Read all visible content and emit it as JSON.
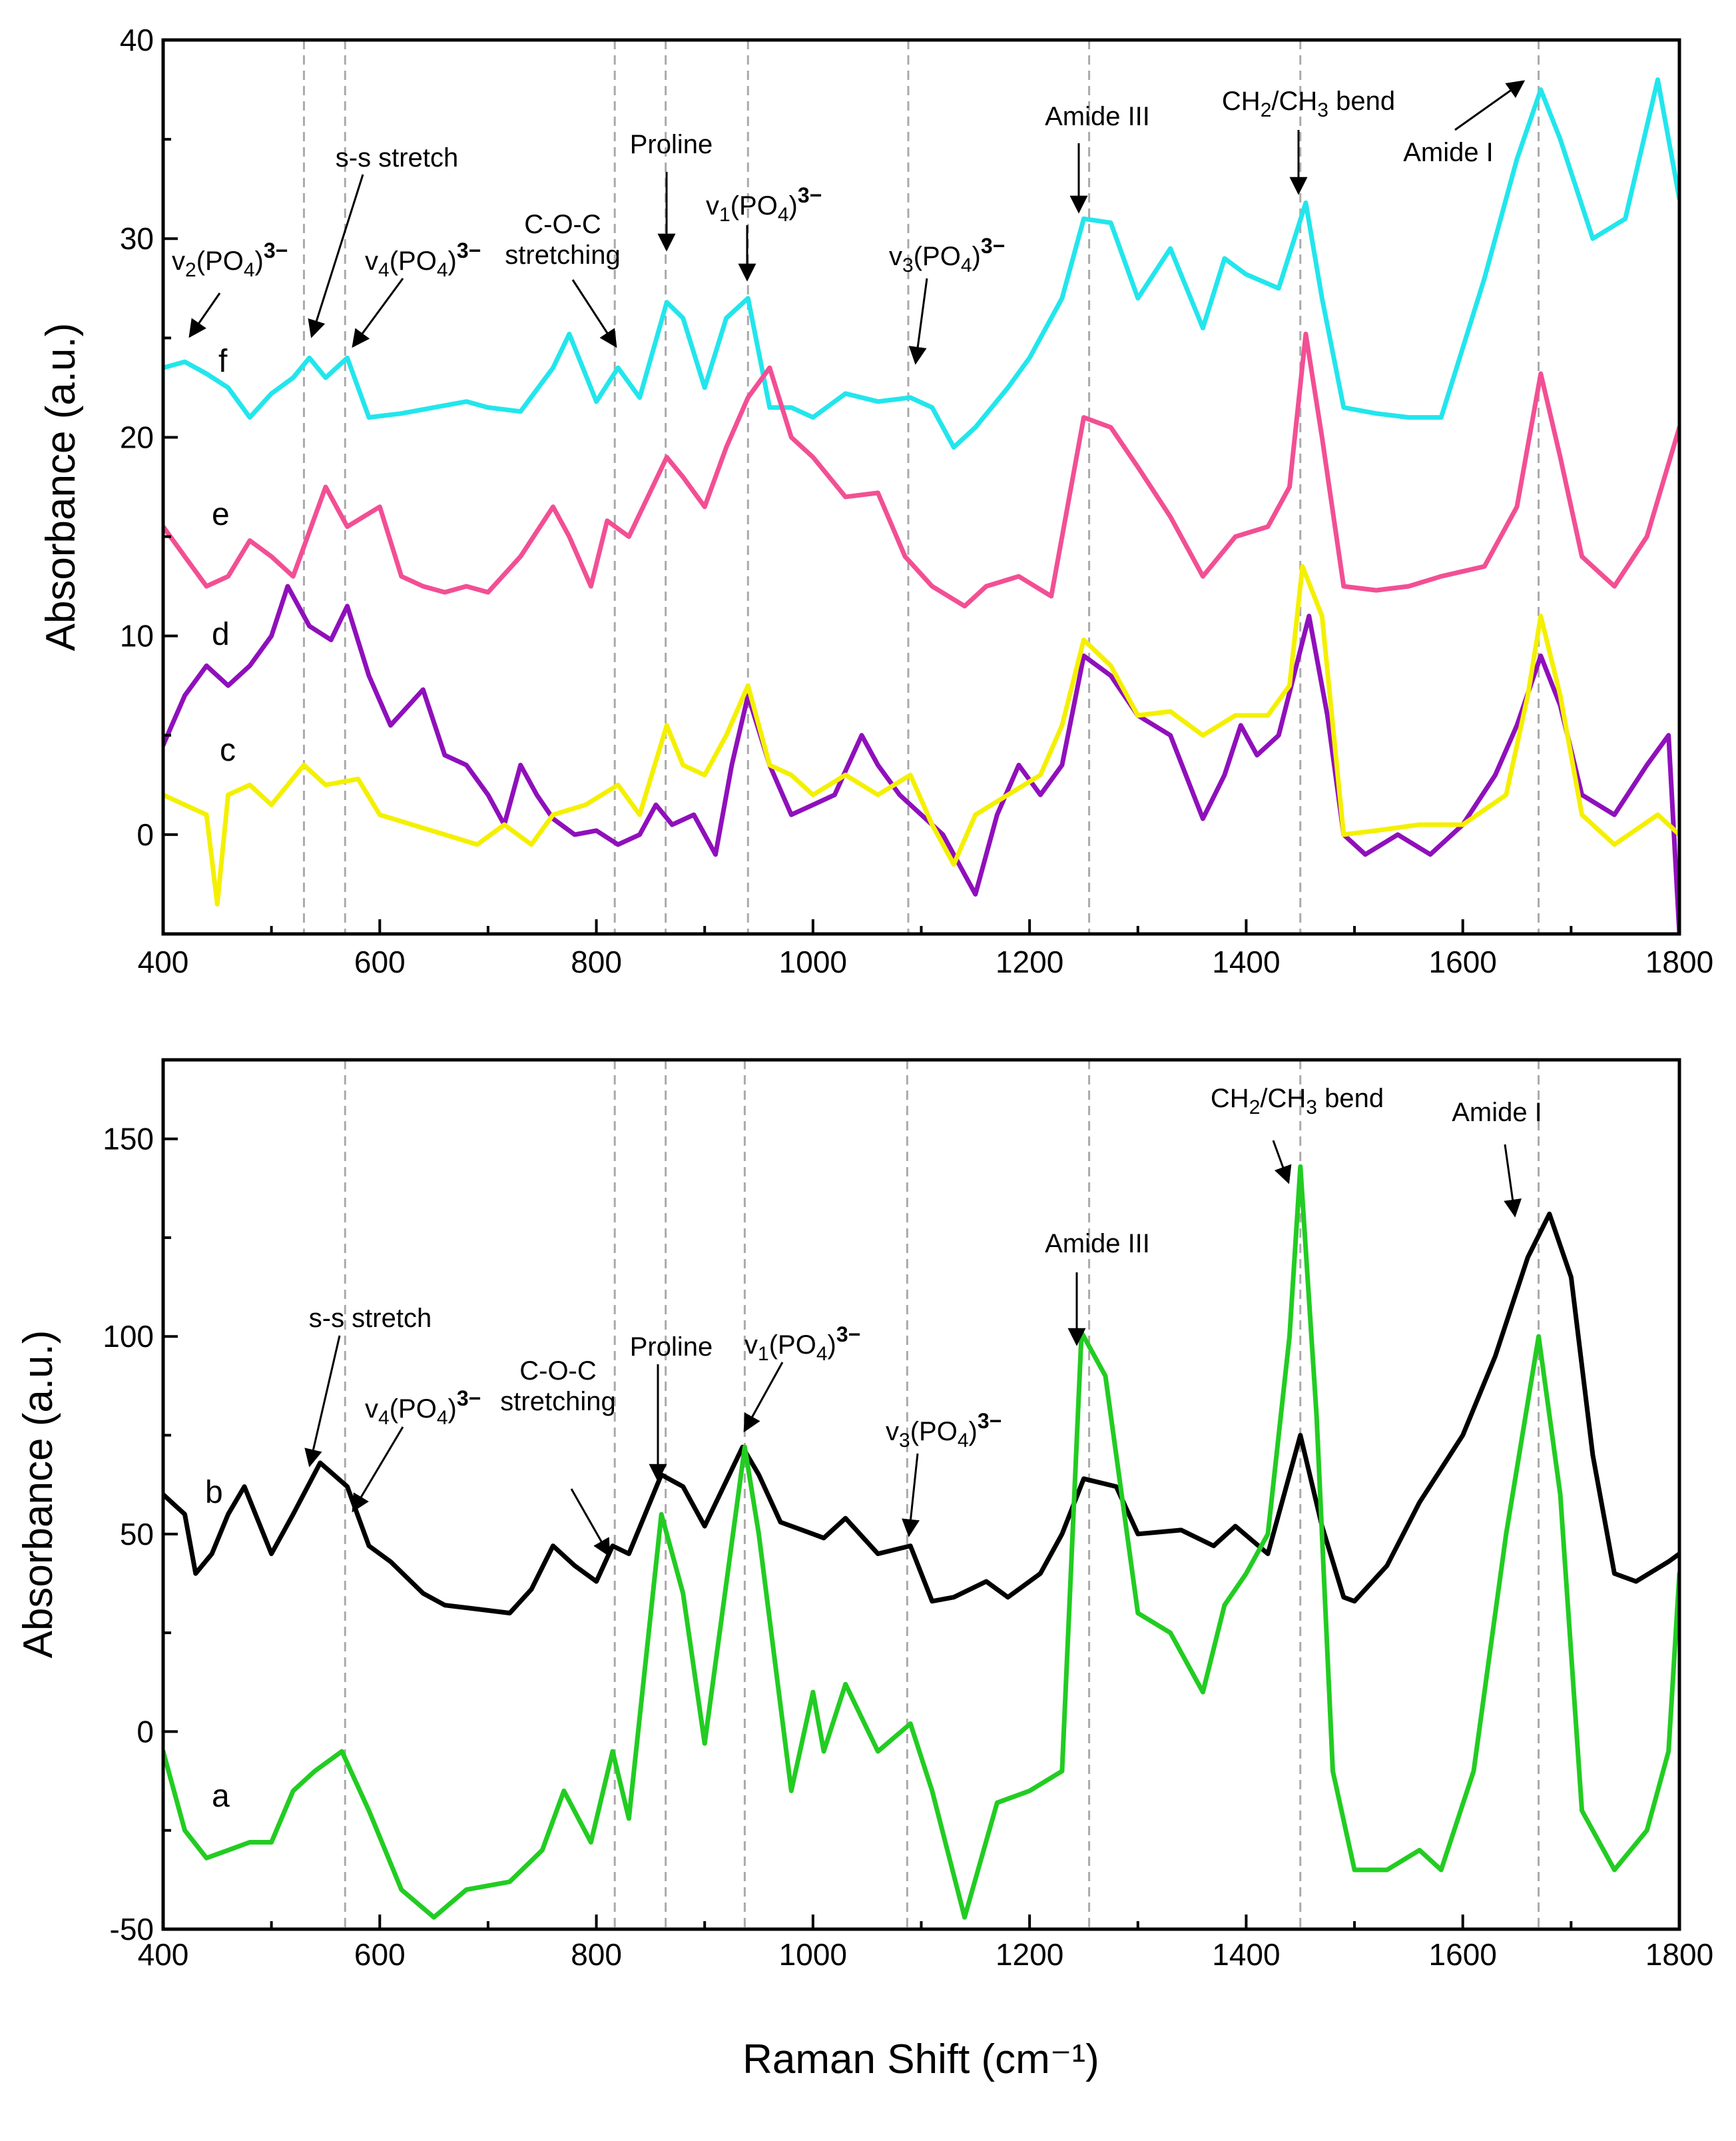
{
  "chart_data": [
    {
      "type": "line",
      "panel": "top",
      "xlabel": "",
      "ylabel": "Absorbance (a.u.)",
      "xlim": [
        400,
        1800
      ],
      "ylim": [
        -5,
        40
      ],
      "xticks": [
        400,
        600,
        800,
        1000,
        1200,
        1400,
        1600,
        1800
      ],
      "yticks": [
        0,
        10,
        20,
        30,
        40
      ],
      "reference_lines_x": [
        530,
        568,
        817,
        864,
        940,
        1088,
        1255,
        1450,
        1670
      ],
      "series": [
        {
          "name": "f",
          "color": "#22e6ec",
          "x": [
            400,
            420,
            440,
            460,
            480,
            500,
            520,
            535,
            550,
            570,
            590,
            620,
            650,
            680,
            700,
            730,
            760,
            775,
            800,
            820,
            840,
            865,
            880,
            900,
            920,
            940,
            960,
            980,
            1000,
            1030,
            1060,
            1090,
            1110,
            1130,
            1150,
            1180,
            1200,
            1230,
            1250,
            1275,
            1300,
            1330,
            1360,
            1380,
            1400,
            1430,
            1455,
            1470,
            1490,
            1520,
            1550,
            1580,
            1620,
            1650,
            1672,
            1690,
            1720,
            1750,
            1780,
            1800
          ],
          "values": [
            23.5,
            23.8,
            23.2,
            22.5,
            21.0,
            22.2,
            23.0,
            24.0,
            23.0,
            24.0,
            21.0,
            21.2,
            21.5,
            21.8,
            21.5,
            21.3,
            23.5,
            25.2,
            21.8,
            23.5,
            22.0,
            26.8,
            26.0,
            22.5,
            26.0,
            27.0,
            21.5,
            21.5,
            21.0,
            22.2,
            21.8,
            22.0,
            21.5,
            19.5,
            20.5,
            22.5,
            24.0,
            27.0,
            31.0,
            30.8,
            27.0,
            29.5,
            25.5,
            29.0,
            28.2,
            27.5,
            31.8,
            27.0,
            21.5,
            21.2,
            21.0,
            21.0,
            28.0,
            34.0,
            37.5,
            35.0,
            30.0,
            31.0,
            38.0,
            32.0
          ]
        },
        {
          "name": "e",
          "color": "#f24f94",
          "x": [
            400,
            420,
            440,
            460,
            480,
            500,
            520,
            550,
            570,
            600,
            620,
            640,
            660,
            680,
            700,
            730,
            760,
            775,
            795,
            810,
            830,
            865,
            880,
            900,
            920,
            940,
            960,
            980,
            1000,
            1030,
            1060,
            1085,
            1110,
            1140,
            1160,
            1190,
            1220,
            1250,
            1275,
            1300,
            1330,
            1360,
            1390,
            1420,
            1440,
            1455,
            1470,
            1490,
            1520,
            1550,
            1580,
            1620,
            1650,
            1672,
            1690,
            1710,
            1740,
            1770,
            1800
          ],
          "values": [
            15.5,
            14.0,
            12.5,
            13.0,
            14.8,
            14.0,
            13.0,
            17.5,
            15.5,
            16.5,
            13.0,
            12.5,
            12.2,
            12.5,
            12.2,
            14.0,
            16.5,
            15.0,
            12.5,
            15.8,
            15.0,
            19.0,
            18.0,
            16.5,
            19.5,
            22.0,
            23.5,
            20.0,
            19.0,
            17.0,
            17.2,
            14.0,
            12.5,
            11.5,
            12.5,
            13.0,
            12.0,
            21.0,
            20.5,
            18.5,
            16.0,
            13.0,
            15.0,
            15.5,
            17.5,
            25.2,
            20.0,
            12.5,
            12.3,
            12.5,
            13.0,
            13.5,
            16.5,
            23.2,
            19.0,
            14.0,
            12.5,
            15.0,
            20.5
          ]
        },
        {
          "name": "d",
          "color": "#8f10bb",
          "x": [
            400,
            420,
            440,
            460,
            480,
            500,
            515,
            535,
            555,
            570,
            590,
            610,
            640,
            660,
            680,
            700,
            715,
            730,
            745,
            760,
            780,
            800,
            820,
            840,
            855,
            870,
            890,
            910,
            925,
            940,
            960,
            980,
            1000,
            1020,
            1045,
            1060,
            1080,
            1100,
            1120,
            1150,
            1170,
            1190,
            1210,
            1230,
            1250,
            1275,
            1300,
            1330,
            1360,
            1380,
            1395,
            1410,
            1430,
            1458,
            1475,
            1490,
            1510,
            1540,
            1570,
            1600,
            1630,
            1650,
            1672,
            1690,
            1710,
            1740,
            1770,
            1790,
            1800
          ],
          "values": [
            4.5,
            7.0,
            8.5,
            7.5,
            8.5,
            10.0,
            12.5,
            10.5,
            9.8,
            11.5,
            8.0,
            5.5,
            7.3,
            4.0,
            3.5,
            2.0,
            0.5,
            3.5,
            2.0,
            0.8,
            0.0,
            0.2,
            -0.5,
            0.0,
            1.5,
            0.5,
            1.0,
            -1.0,
            3.5,
            7.0,
            3.5,
            1.0,
            1.5,
            2.0,
            5.0,
            3.5,
            2.0,
            1.0,
            0.0,
            -3.0,
            1.0,
            3.5,
            2.0,
            3.5,
            9.0,
            8.0,
            6.0,
            5.0,
            0.8,
            3.0,
            5.5,
            4.0,
            5.0,
            11.0,
            6.0,
            0.0,
            -1.0,
            0.0,
            -1.0,
            0.5,
            3.0,
            5.5,
            9.0,
            6.5,
            2.0,
            1.0,
            3.5,
            5.0,
            -5.0
          ]
        },
        {
          "name": "c",
          "color": "#f4f000",
          "x": [
            400,
            420,
            440,
            450,
            460,
            480,
            500,
            530,
            550,
            580,
            600,
            630,
            660,
            690,
            715,
            740,
            760,
            790,
            820,
            840,
            865,
            880,
            900,
            920,
            940,
            960,
            980,
            1000,
            1030,
            1060,
            1090,
            1110,
            1130,
            1150,
            1180,
            1210,
            1230,
            1250,
            1275,
            1300,
            1330,
            1360,
            1390,
            1420,
            1440,
            1452,
            1470,
            1490,
            1520,
            1560,
            1600,
            1640,
            1660,
            1672,
            1690,
            1710,
            1740,
            1780,
            1800
          ],
          "values": [
            2.0,
            1.5,
            1.0,
            -3.5,
            2.0,
            2.5,
            1.5,
            3.5,
            2.5,
            2.8,
            1.0,
            0.5,
            0.0,
            -0.5,
            0.5,
            -0.5,
            1.0,
            1.5,
            2.5,
            1.0,
            5.5,
            3.5,
            3.0,
            5.0,
            7.5,
            3.5,
            3.0,
            2.0,
            3.0,
            2.0,
            3.0,
            0.5,
            -1.5,
            1.0,
            2.0,
            3.0,
            5.5,
            9.8,
            8.5,
            6.0,
            6.2,
            5.0,
            6.0,
            6.0,
            7.5,
            13.5,
            11.0,
            0.0,
            0.2,
            0.5,
            0.5,
            2.0,
            7.0,
            11.0,
            7.0,
            1.0,
            -0.5,
            1.0,
            0.0
          ]
        }
      ],
      "curve_labels": [
        "f",
        "e",
        "d",
        "c"
      ]
    },
    {
      "type": "line",
      "panel": "bottom",
      "xlabel": "Raman Shift (cm⁻¹)",
      "ylabel": "Absorbance (a.u.)",
      "xlim": [
        400,
        1800
      ],
      "ylim": [
        -50,
        170
      ],
      "xticks": [
        400,
        600,
        800,
        1000,
        1200,
        1400,
        1600,
        1800
      ],
      "yticks": [
        -50,
        0,
        50,
        100,
        150
      ],
      "reference_lines_x": [
        568,
        817,
        864,
        937,
        1087,
        1255,
        1450,
        1670
      ],
      "series": [
        {
          "name": "b",
          "color": "#000000",
          "x": [
            400,
            420,
            430,
            445,
            460,
            475,
            500,
            520,
            545,
            570,
            590,
            610,
            640,
            660,
            690,
            720,
            740,
            760,
            780,
            800,
            815,
            830,
            860,
            880,
            900,
            935,
            950,
            970,
            1000,
            1010,
            1030,
            1060,
            1090,
            1110,
            1130,
            1160,
            1180,
            1210,
            1230,
            1250,
            1280,
            1300,
            1340,
            1370,
            1390,
            1420,
            1450,
            1470,
            1490,
            1500,
            1530,
            1560,
            1600,
            1630,
            1660,
            1680,
            1700,
            1720,
            1740,
            1760,
            1790,
            1800
          ],
          "values": [
            60.0,
            55.0,
            40.0,
            45.0,
            55.0,
            62.0,
            45.0,
            55.0,
            68.0,
            62.0,
            47.0,
            43.0,
            35.0,
            32.0,
            31.0,
            30.0,
            36.0,
            47.0,
            42.0,
            38.0,
            47.0,
            45.0,
            65.0,
            62.0,
            52.0,
            72.0,
            65.0,
            53.0,
            50.0,
            49.0,
            54.0,
            45.0,
            47.0,
            33.0,
            34.0,
            38.0,
            34.0,
            40.0,
            50.0,
            64.0,
            62.0,
            50.0,
            51.0,
            47.0,
            52.0,
            45.0,
            75.0,
            52.0,
            34.0,
            33.0,
            42.0,
            58.0,
            75.0,
            95.0,
            120.0,
            131.0,
            115.0,
            70.0,
            40.0,
            38.0,
            43.0,
            45.0
          ]
        },
        {
          "name": "a",
          "color": "#22cc22",
          "x": [
            400,
            420,
            440,
            460,
            480,
            500,
            520,
            540,
            565,
            590,
            620,
            650,
            680,
            720,
            750,
            770,
            795,
            815,
            830,
            860,
            880,
            900,
            937,
            950,
            980,
            1000,
            1010,
            1030,
            1060,
            1090,
            1110,
            1140,
            1170,
            1200,
            1230,
            1248,
            1270,
            1300,
            1330,
            1360,
            1380,
            1400,
            1420,
            1440,
            1450,
            1465,
            1480,
            1500,
            1530,
            1560,
            1580,
            1610,
            1640,
            1670,
            1690,
            1710,
            1740,
            1770,
            1790,
            1800
          ],
          "values": [
            -5.0,
            -25.0,
            -32.0,
            -30.0,
            -28.0,
            -28.0,
            -15.0,
            -10.0,
            -5.0,
            -20.0,
            -40.0,
            -47.0,
            -40.0,
            -38.0,
            -30.0,
            -15.0,
            -28.0,
            -5.0,
            -22.0,
            55.0,
            35.0,
            -3.0,
            72.0,
            50.0,
            -15.0,
            10.0,
            -5.0,
            12.0,
            -5.0,
            2.0,
            -15.0,
            -47.0,
            -18.0,
            -15.0,
            -10.0,
            101.0,
            90.0,
            30.0,
            25.0,
            10.0,
            32.0,
            40.0,
            50.0,
            100.0,
            143.0,
            80.0,
            -10.0,
            -35.0,
            -35.0,
            -30.0,
            -35.0,
            -10.0,
            50.0,
            100.0,
            60.0,
            -20.0,
            -35.0,
            -25.0,
            -5.0,
            40.0
          ]
        }
      ],
      "curve_labels": [
        "b",
        "a"
      ]
    }
  ],
  "annotations": {
    "top": {
      "v2": {
        "prefix": "v",
        "sub1": "2",
        "mid": "(PO",
        "sub2": "4",
        "suf": ")",
        "sup": "3−"
      },
      "ss": "s-s stretch",
      "v4": {
        "prefix": "v",
        "sub1": "4",
        "mid": "(PO",
        "sub2": "4",
        "suf": ")",
        "sup": "3−"
      },
      "coc1": "C-O-C",
      "coc2": "stretching",
      "proline": "Proline",
      "v1": {
        "prefix": "v",
        "sub1": "1",
        "mid": "(PO",
        "sub2": "4",
        "suf": ")",
        "sup": "3−"
      },
      "v3": {
        "prefix": "v",
        "sub1": "3",
        "mid": "(PO",
        "sub2": "4",
        "suf": ")",
        "sup": "3−"
      },
      "amide3": "Amide III",
      "ch": {
        "a": "CH",
        "s1": "2",
        "b": "/CH",
        "s2": "3",
        "c": " bend"
      },
      "amide1": "Amide I"
    },
    "bottom": {
      "ss": "s-s stretch",
      "v4": {
        "prefix": "v",
        "sub1": "4",
        "mid": "(PO",
        "sub2": "4",
        "suf": ")",
        "sup": "3−"
      },
      "coc1": "C-O-C",
      "coc2": "stretching",
      "proline": "Proline",
      "v1": {
        "prefix": "v",
        "sub1": "1",
        "mid": "(PO",
        "sub2": "4",
        "suf": ")",
        "sup": "3−"
      },
      "v3": {
        "prefix": "v",
        "sub1": "3",
        "mid": "(PO",
        "sub2": "4",
        "suf": ")",
        "sup": "3−"
      },
      "amide3": "Amide III",
      "ch": {
        "a": "CH",
        "s1": "2",
        "b": "/CH",
        "s2": "3",
        "c": " bend"
      },
      "amide1": "Amide I"
    }
  }
}
